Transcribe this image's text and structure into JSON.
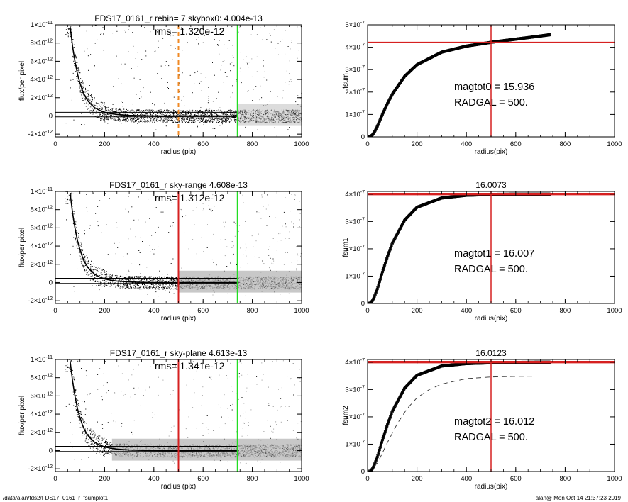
{
  "footer": {
    "left": "/data/alan/fds2/FDS17_0161_r_fsumplot1",
    "right": "alan@  Mon Oct 14 21:37:23 2019"
  },
  "colors": {
    "background": "#ffffff",
    "scatter_points": "#000000",
    "scatter_grey": "#9a9a9a",
    "profile_line": "#000000",
    "red_marker": "#d62020",
    "green_marker": "#22dd22",
    "orange_marker": "#f08a24"
  },
  "chart_data": [
    {
      "id": "profile-1",
      "type": "scatter",
      "title": "FDS17_0161_r rebin= 7    skybox0:  4.004e-13",
      "annotation": "rms= 1.320e-12",
      "xlabel": "radius (pix)",
      "ylabel": "flux/per pixel",
      "xlim": [
        0,
        1000
      ],
      "ylim": [
        -2.3e-12,
        1e-11
      ],
      "x_ticks": [
        {
          "v": 0,
          "label": "0"
        },
        {
          "v": 200,
          "label": "200"
        },
        {
          "v": 400,
          "label": "400"
        },
        {
          "v": 600,
          "label": "600"
        },
        {
          "v": 800,
          "label": "800"
        },
        {
          "v": 1000,
          "label": "1000"
        }
      ],
      "y_ticks": [
        {
          "v": -2e-12,
          "m": "-2",
          "e": "-12"
        },
        {
          "v": 0,
          "m": "0",
          "e": ""
        },
        {
          "v": 2e-12,
          "m": "2",
          "e": "-12"
        },
        {
          "v": 4e-12,
          "m": "4",
          "e": "-12"
        },
        {
          "v": 6e-12,
          "m": "6",
          "e": "-12"
        },
        {
          "v": 8e-12,
          "m": "8",
          "e": "-12"
        },
        {
          "v": 1e-11,
          "m": "1",
          "e": "-11"
        }
      ],
      "hlines": [
        4e-13,
        -1e-13
      ],
      "vlines": [
        {
          "x": 500,
          "color": "#f08a24",
          "dashed": true
        },
        {
          "x": 740,
          "color": "#22dd22",
          "dashed": false
        }
      ],
      "profile_x": [
        60,
        70,
        80,
        90,
        100,
        110,
        120,
        130,
        140,
        160,
        180,
        200,
        220,
        250,
        300,
        350,
        400,
        450,
        500,
        600,
        700,
        740
      ],
      "profile_y": [
        9.8e-12,
        7.6e-12,
        5.9e-12,
        4.6e-12,
        3.6e-12,
        2.8e-12,
        2.2e-12,
        1.75e-12,
        1.4e-12,
        9e-13,
        6e-13,
        4e-13,
        2.8e-13,
        1.6e-13,
        6e-14,
        2e-14,
        0,
        -1e-14,
        -1e-14,
        0,
        0,
        0
      ],
      "grey_range": [
        740,
        1000
      ],
      "grey_dense": false
    },
    {
      "id": "growth-1",
      "type": "line",
      "title": "",
      "xlabel": "radius(pix)",
      "ylabel": "fsum",
      "xlim": [
        0,
        1000
      ],
      "ylim": [
        0,
        5e-07
      ],
      "x_ticks": [
        {
          "v": 0,
          "label": "0"
        },
        {
          "v": 200,
          "label": "200"
        },
        {
          "v": 400,
          "label": "400"
        },
        {
          "v": 600,
          "label": "600"
        },
        {
          "v": 800,
          "label": "800"
        },
        {
          "v": 1000,
          "label": "1000"
        }
      ],
      "y_ticks": [
        {
          "v": 0,
          "m": "0",
          "e": ""
        },
        {
          "v": 1e-07,
          "m": "1×10",
          "e": "-7"
        },
        {
          "v": 2e-07,
          "m": "2×10",
          "e": "-7"
        },
        {
          "v": 3e-07,
          "m": "3×10",
          "e": "-7"
        },
        {
          "v": 4e-07,
          "m": "4×10",
          "e": "-7"
        },
        {
          "v": 5e-07,
          "m": "5×10",
          "e": "-7"
        }
      ],
      "curve_x": [
        0,
        10,
        20,
        30,
        40,
        60,
        80,
        100,
        150,
        200,
        300,
        400,
        500,
        600,
        700,
        740
      ],
      "curve_y": [
        0,
        1e-09,
        9e-09,
        2.6e-08,
        4.8e-08,
        1e-07,
        1.48e-07,
        1.9e-07,
        2.7e-07,
        3.22e-07,
        3.78e-07,
        4.05e-07,
        4.22e-07,
        4.36e-07,
        4.5e-07,
        4.56e-07
      ],
      "dashed_x": [],
      "dashed_y": [],
      "red_v": 500,
      "red_h": [
        4.22e-07
      ],
      "annotation_lines": [
        "magtot0 =  15.936",
        "RADGAL =    500."
      ]
    },
    {
      "id": "profile-2",
      "type": "scatter",
      "title": "FDS17_0161_r sky-range  4.608e-13",
      "annotation": "rms= 1.312e-12",
      "xlabel": "radius (pix)",
      "ylabel": "flux/per pixel",
      "xlim": [
        0,
        1000
      ],
      "ylim": [
        -2.3e-12,
        1e-11
      ],
      "x_ticks": [
        {
          "v": 0,
          "label": "0"
        },
        {
          "v": 200,
          "label": "200"
        },
        {
          "v": 400,
          "label": "400"
        },
        {
          "v": 600,
          "label": "600"
        },
        {
          "v": 800,
          "label": "800"
        },
        {
          "v": 1000,
          "label": "1000"
        }
      ],
      "y_ticks": [
        {
          "v": -2e-12,
          "m": "-2",
          "e": "-12"
        },
        {
          "v": 0,
          "m": "0",
          "e": ""
        },
        {
          "v": 2e-12,
          "m": "2",
          "e": "-12"
        },
        {
          "v": 4e-12,
          "m": "4",
          "e": "-12"
        },
        {
          "v": 6e-12,
          "m": "6",
          "e": "-12"
        },
        {
          "v": 8e-12,
          "m": "8",
          "e": "-12"
        },
        {
          "v": 1e-11,
          "m": "1",
          "e": "-11"
        }
      ],
      "hlines": [
        4.6e-13,
        -1e-13
      ],
      "vlines": [
        {
          "x": 500,
          "color": "#d62020",
          "dashed": false
        },
        {
          "x": 740,
          "color": "#22dd22",
          "dashed": false
        }
      ],
      "profile_x": [
        60,
        70,
        80,
        90,
        100,
        110,
        120,
        130,
        140,
        160,
        180,
        200,
        220,
        250,
        300,
        350,
        400,
        450,
        500,
        600,
        700,
        740
      ],
      "profile_y": [
        9.8e-12,
        7.6e-12,
        5.9e-12,
        4.6e-12,
        3.6e-12,
        2.8e-12,
        2.2e-12,
        1.75e-12,
        1.4e-12,
        9e-13,
        6e-13,
        4e-13,
        2.8e-13,
        1.6e-13,
        6e-14,
        2e-14,
        0,
        -1e-14,
        -1e-14,
        0,
        0,
        0
      ],
      "grey_range": [
        500,
        1000
      ],
      "grey_dense": true
    },
    {
      "id": "growth-2",
      "type": "line",
      "title": "16.0073",
      "xlabel": "radius(pix)",
      "ylabel": "fsum1",
      "xlim": [
        0,
        1000
      ],
      "ylim": [
        0,
        4.1e-07
      ],
      "x_ticks": [
        {
          "v": 0,
          "label": "0"
        },
        {
          "v": 200,
          "label": "200"
        },
        {
          "v": 400,
          "label": "400"
        },
        {
          "v": 600,
          "label": "600"
        },
        {
          "v": 800,
          "label": "800"
        },
        {
          "v": 1000,
          "label": "1000"
        }
      ],
      "y_ticks": [
        {
          "v": 0,
          "m": "0",
          "e": ""
        },
        {
          "v": 1e-07,
          "m": "1×10",
          "e": "-7"
        },
        {
          "v": 2e-07,
          "m": "2×10",
          "e": "-7"
        },
        {
          "v": 3e-07,
          "m": "3×10",
          "e": "-7"
        },
        {
          "v": 4e-07,
          "m": "4×10",
          "e": "-7"
        }
      ],
      "curve_x": [
        0,
        10,
        20,
        30,
        40,
        60,
        80,
        100,
        150,
        200,
        300,
        400,
        500,
        600,
        700,
        740
      ],
      "curve_y": [
        0,
        1e-09,
        1e-08,
        3e-08,
        5.5e-08,
        1.15e-07,
        1.7e-07,
        2.2e-07,
        3.05e-07,
        3.52e-07,
        3.86e-07,
        3.96e-07,
        3.99e-07,
        4e-07,
        4e-07,
        4e-07
      ],
      "dashed_x": [],
      "dashed_y": [],
      "red_v": 500,
      "red_h": [
        3.98e-07,
        4.03e-07
      ],
      "annotation_lines": [
        "magtot1 =  16.007",
        "RADGAL =    500."
      ]
    },
    {
      "id": "profile-3",
      "type": "scatter",
      "title": "FDS17_0161_r sky-plane  4.613e-13",
      "annotation": "rms= 1.341e-12",
      "xlabel": "radius (pix)",
      "ylabel": "flux/per pixel",
      "xlim": [
        0,
        1000
      ],
      "ylim": [
        -2.3e-12,
        1e-11
      ],
      "x_ticks": [
        {
          "v": 0,
          "label": "0"
        },
        {
          "v": 200,
          "label": "200"
        },
        {
          "v": 400,
          "label": "400"
        },
        {
          "v": 600,
          "label": "600"
        },
        {
          "v": 800,
          "label": "800"
        },
        {
          "v": 1000,
          "label": "1000"
        }
      ],
      "y_ticks": [
        {
          "v": -2e-12,
          "m": "-2",
          "e": "-12"
        },
        {
          "v": 0,
          "m": "0",
          "e": ""
        },
        {
          "v": 2e-12,
          "m": "2",
          "e": "-12"
        },
        {
          "v": 4e-12,
          "m": "4",
          "e": "-12"
        },
        {
          "v": 6e-12,
          "m": "6",
          "e": "-12"
        },
        {
          "v": 8e-12,
          "m": "8",
          "e": "-12"
        },
        {
          "v": 1e-11,
          "m": "1",
          "e": "-11"
        }
      ],
      "hlines": [
        4.6e-13,
        -1e-13
      ],
      "vlines": [
        {
          "x": 500,
          "color": "#d62020",
          "dashed": false
        },
        {
          "x": 740,
          "color": "#22dd22",
          "dashed": false
        }
      ],
      "profile_x": [
        60,
        70,
        80,
        90,
        100,
        110,
        120,
        130,
        140,
        160,
        180,
        200,
        220,
        250,
        300,
        350,
        400,
        450,
        500,
        600,
        700,
        740
      ],
      "profile_y": [
        9.8e-12,
        7.6e-12,
        5.9e-12,
        4.6e-12,
        3.6e-12,
        2.8e-12,
        2.2e-12,
        1.75e-12,
        1.4e-12,
        9e-13,
        6e-13,
        4e-13,
        2.8e-13,
        1.6e-13,
        6e-14,
        2e-14,
        0,
        -1e-14,
        -1e-14,
        0,
        0,
        0
      ],
      "grey_range": [
        230,
        1000
      ],
      "grey_dense": true
    },
    {
      "id": "growth-3",
      "type": "line",
      "title": "16.0123",
      "xlabel": "radius(pix)",
      "ylabel": "fsum2",
      "xlim": [
        0,
        1000
      ],
      "ylim": [
        0,
        4.1e-07
      ],
      "x_ticks": [
        {
          "v": 0,
          "label": "0"
        },
        {
          "v": 200,
          "label": "200"
        },
        {
          "v": 400,
          "label": "400"
        },
        {
          "v": 600,
          "label": "600"
        },
        {
          "v": 800,
          "label": "800"
        },
        {
          "v": 1000,
          "label": "1000"
        }
      ],
      "y_ticks": [
        {
          "v": 0,
          "m": "0",
          "e": ""
        },
        {
          "v": 1e-07,
          "m": "1×10",
          "e": "-7"
        },
        {
          "v": 2e-07,
          "m": "2×10",
          "e": "-7"
        },
        {
          "v": 3e-07,
          "m": "3×10",
          "e": "-7"
        },
        {
          "v": 4e-07,
          "m": "4×10",
          "e": "-7"
        }
      ],
      "curve_x": [
        0,
        10,
        20,
        30,
        40,
        60,
        80,
        100,
        150,
        200,
        300,
        400,
        500,
        600,
        700,
        740
      ],
      "curve_y": [
        0,
        1e-09,
        1e-08,
        3e-08,
        5.5e-08,
        1.15e-07,
        1.7e-07,
        2.2e-07,
        3.05e-07,
        3.52e-07,
        3.86e-07,
        3.95e-07,
        3.98e-07,
        3.99e-07,
        4e-07,
        4e-07
      ],
      "dashed_x": [
        0,
        40,
        80,
        120,
        160,
        200,
        250,
        300,
        400,
        500,
        600,
        700,
        740
      ],
      "dashed_y": [
        0,
        3e-08,
        1.05e-07,
        1.75e-07,
        2.3e-07,
        2.7e-07,
        3e-07,
        3.2e-07,
        3.4e-07,
        3.46e-07,
        3.48e-07,
        3.49e-07,
        3.49e-07
      ],
      "red_v": 500,
      "red_h": [
        3.98e-07,
        4.03e-07
      ],
      "annotation_lines": [
        "magtot2 =  16.012",
        "RADGAL =    500."
      ]
    }
  ]
}
